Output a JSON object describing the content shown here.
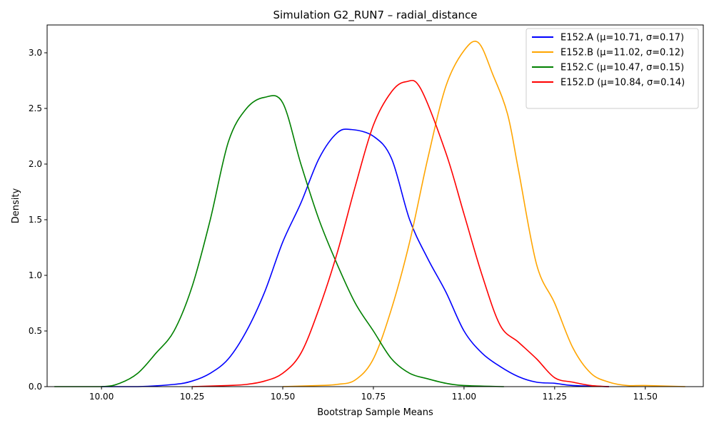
{
  "chart_data": {
    "type": "line",
    "title": "Simulation G2_RUN7 – radial_distance",
    "xlabel": "Bootstrap Sample Means",
    "ylabel": "Density",
    "xlim": [
      9.85,
      11.66
    ],
    "ylim": [
      0,
      3.25
    ],
    "xticks": [
      "10.00",
      "10.25",
      "10.50",
      "10.75",
      "11.00",
      "11.25",
      "11.50"
    ],
    "yticks": [
      "0.0",
      "0.5",
      "1.0",
      "1.5",
      "2.0",
      "2.5",
      "3.0"
    ],
    "legend_position": "top-right",
    "grid": false,
    "series": [
      {
        "name": "E152.A (μ=10.71, σ=0.17)",
        "color": "#0000ff",
        "points": [
          [
            10.0,
            0.0
          ],
          [
            10.1,
            0.0
          ],
          [
            10.2,
            0.02
          ],
          [
            10.25,
            0.05
          ],
          [
            10.3,
            0.12
          ],
          [
            10.35,
            0.25
          ],
          [
            10.4,
            0.5
          ],
          [
            10.45,
            0.85
          ],
          [
            10.5,
            1.3
          ],
          [
            10.55,
            1.65
          ],
          [
            10.6,
            2.05
          ],
          [
            10.65,
            2.28
          ],
          [
            10.69,
            2.31
          ],
          [
            10.75,
            2.25
          ],
          [
            10.8,
            2.05
          ],
          [
            10.85,
            1.5
          ],
          [
            10.9,
            1.15
          ],
          [
            10.95,
            0.85
          ],
          [
            11.0,
            0.5
          ],
          [
            11.05,
            0.3
          ],
          [
            11.1,
            0.18
          ],
          [
            11.15,
            0.09
          ],
          [
            11.2,
            0.04
          ],
          [
            11.25,
            0.03
          ],
          [
            11.3,
            0.01
          ],
          [
            11.4,
            0.0
          ]
        ]
      },
      {
        "name": "E152.B (μ=11.02, σ=0.12)",
        "color": "#ffa500",
        "points": [
          [
            10.5,
            0.0
          ],
          [
            10.6,
            0.01
          ],
          [
            10.65,
            0.02
          ],
          [
            10.7,
            0.06
          ],
          [
            10.75,
            0.25
          ],
          [
            10.8,
            0.7
          ],
          [
            10.85,
            1.3
          ],
          [
            10.9,
            2.05
          ],
          [
            10.95,
            2.7
          ],
          [
            11.0,
            3.02
          ],
          [
            11.04,
            3.09
          ],
          [
            11.08,
            2.8
          ],
          [
            11.12,
            2.45
          ],
          [
            11.15,
            1.95
          ],
          [
            11.2,
            1.1
          ],
          [
            11.25,
            0.75
          ],
          [
            11.3,
            0.35
          ],
          [
            11.35,
            0.12
          ],
          [
            11.4,
            0.04
          ],
          [
            11.45,
            0.01
          ],
          [
            11.5,
            0.01
          ],
          [
            11.61,
            0.0
          ]
        ]
      },
      {
        "name": "E152.C (μ=10.47, σ=0.15)",
        "color": "#008000",
        "points": [
          [
            9.87,
            0.0
          ],
          [
            10.0,
            0.0
          ],
          [
            10.05,
            0.03
          ],
          [
            10.1,
            0.12
          ],
          [
            10.15,
            0.3
          ],
          [
            10.2,
            0.5
          ],
          [
            10.25,
            0.9
          ],
          [
            10.3,
            1.5
          ],
          [
            10.35,
            2.2
          ],
          [
            10.4,
            2.5
          ],
          [
            10.45,
            2.6
          ],
          [
            10.5,
            2.55
          ],
          [
            10.55,
            2.0
          ],
          [
            10.6,
            1.5
          ],
          [
            10.65,
            1.1
          ],
          [
            10.7,
            0.75
          ],
          [
            10.75,
            0.5
          ],
          [
            10.8,
            0.25
          ],
          [
            10.85,
            0.12
          ],
          [
            10.9,
            0.07
          ],
          [
            10.95,
            0.03
          ],
          [
            11.0,
            0.01
          ],
          [
            11.11,
            0.0
          ]
        ]
      },
      {
        "name": "E152.D (μ=10.84, σ=0.14)",
        "color": "#ff0000",
        "points": [
          [
            10.25,
            0.0
          ],
          [
            10.35,
            0.01
          ],
          [
            10.4,
            0.02
          ],
          [
            10.45,
            0.05
          ],
          [
            10.5,
            0.12
          ],
          [
            10.55,
            0.3
          ],
          [
            10.6,
            0.7
          ],
          [
            10.65,
            1.2
          ],
          [
            10.7,
            1.8
          ],
          [
            10.75,
            2.35
          ],
          [
            10.8,
            2.65
          ],
          [
            10.84,
            2.74
          ],
          [
            10.88,
            2.68
          ],
          [
            10.95,
            2.1
          ],
          [
            11.0,
            1.55
          ],
          [
            11.05,
            1.0
          ],
          [
            11.1,
            0.55
          ],
          [
            11.15,
            0.4
          ],
          [
            11.2,
            0.25
          ],
          [
            11.25,
            0.08
          ],
          [
            11.3,
            0.04
          ],
          [
            11.35,
            0.01
          ],
          [
            11.4,
            0.0
          ]
        ]
      }
    ]
  }
}
